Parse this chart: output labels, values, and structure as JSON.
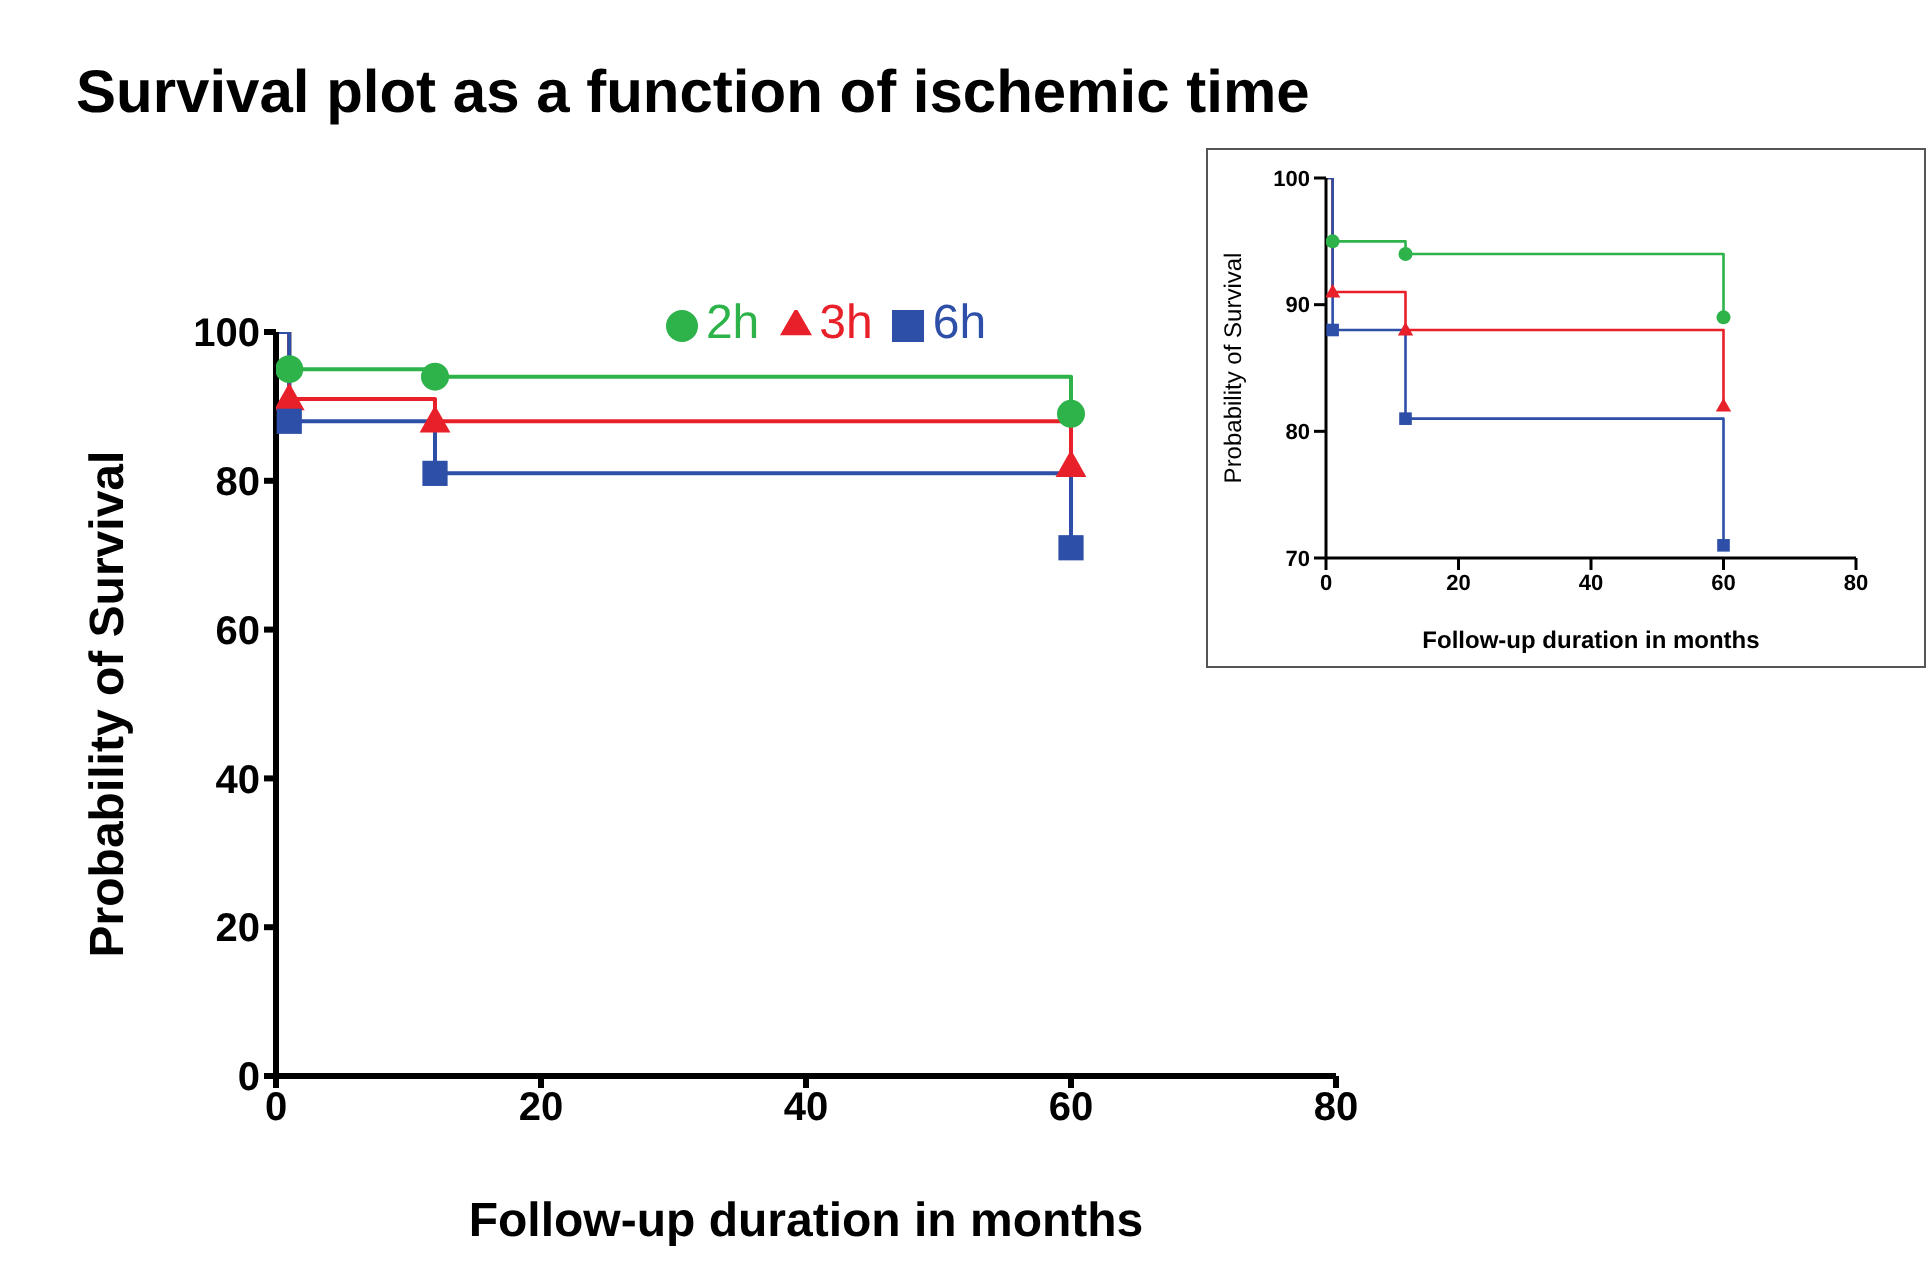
{
  "chart_data": [
    {
      "type": "step",
      "title": "Survival plot as a function of ischemic time",
      "xlabel": "Follow-up duration in months",
      "ylabel": "Probability of Survival",
      "x": [
        0,
        1,
        12,
        60
      ],
      "series": [
        {
          "name": "2h",
          "color": "#2db34a",
          "marker": "circle",
          "values": [
            100,
            95,
            94,
            89
          ]
        },
        {
          "name": "3h",
          "color": "#e8202a",
          "marker": "triangle",
          "values": [
            100,
            91,
            88,
            82
          ]
        },
        {
          "name": "6h",
          "color": "#2e4fa8",
          "marker": "square",
          "values": [
            100,
            88,
            81,
            71
          ]
        }
      ],
      "xlim": [
        0,
        80
      ],
      "xticks": [
        0,
        20,
        40,
        60,
        80
      ],
      "ylim": [
        0,
        100
      ],
      "yticks": [
        0,
        20,
        40,
        60,
        80,
        100
      ],
      "legend": "top",
      "grid": false
    },
    {
      "type": "step",
      "xlabel": "Follow-up duration in months",
      "ylabel": "Probability of Survival",
      "x": [
        0,
        1,
        12,
        60
      ],
      "series": [
        {
          "color": "#2db34a",
          "marker": "circle",
          "values": [
            100,
            95,
            94,
            89
          ]
        },
        {
          "color": "#e8202a",
          "marker": "triangle",
          "values": [
            100,
            91,
            88,
            82
          ]
        },
        {
          "color": "#2e4fa8",
          "marker": "square",
          "values": [
            100,
            88,
            81,
            71
          ]
        }
      ],
      "xlim": [
        0,
        80
      ],
      "xticks": [
        0,
        20,
        40,
        60,
        80
      ],
      "ylim": [
        70,
        100
      ],
      "yticks": [
        70,
        80,
        90,
        100
      ],
      "grid": false
    }
  ]
}
